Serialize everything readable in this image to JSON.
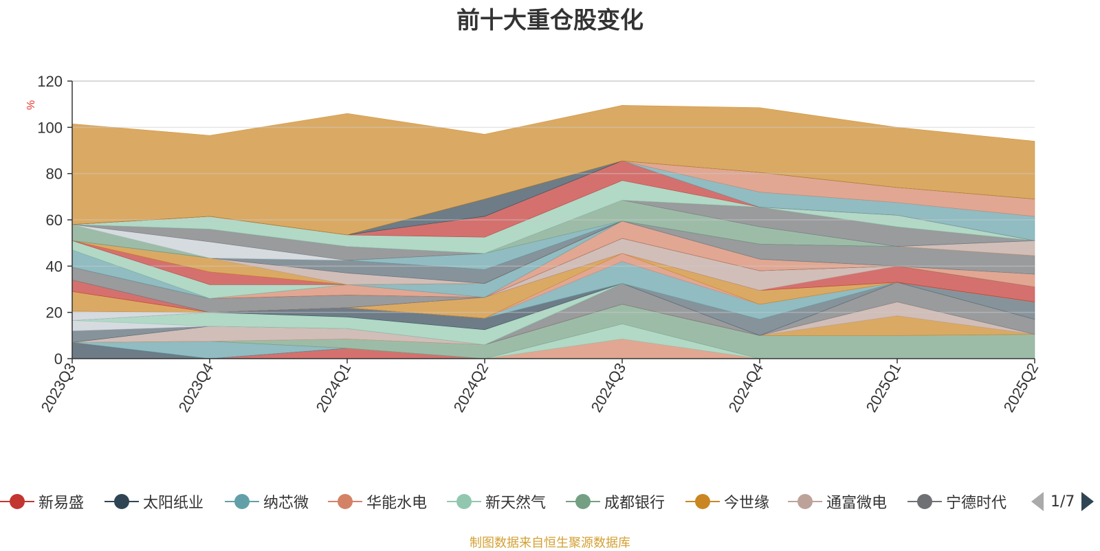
{
  "chart_data": {
    "type": "area",
    "title": "前十大重仓股变化",
    "ylabel": "%",
    "ylim": [
      0,
      120
    ],
    "yticks": [
      "0",
      "20",
      "40",
      "60",
      "80",
      "100",
      "120"
    ],
    "categories": [
      "2023Q3",
      "2023Q4",
      "2024Q1",
      "2024Q2",
      "2024Q3",
      "2024Q4",
      "2025Q1",
      "2025Q2"
    ],
    "series": [
      {
        "name": "新易盛",
        "color": "#c23531",
        "values": [
          0,
          0,
          4.5,
          0,
          0,
          0,
          0,
          0
        ]
      },
      {
        "name": "太阳纸业",
        "color": "#2f4554",
        "values": [
          7,
          0,
          0,
          0,
          0,
          0,
          0,
          0
        ]
      },
      {
        "name": "纳芯微",
        "color": "#61a0a8",
        "values": [
          0,
          7.5,
          0,
          0,
          0,
          0,
          0,
          0
        ]
      },
      {
        "name": "华能水电",
        "color": "#d48265",
        "values": [
          0,
          0,
          0,
          0,
          8.5,
          0,
          0,
          0
        ]
      },
      {
        "name": "新天然气",
        "color": "#91c7ae",
        "values": [
          0,
          0,
          0,
          0,
          6.5,
          0,
          0,
          0
        ]
      },
      {
        "name": "成都银行",
        "color": "#749f83",
        "values": [
          0,
          0,
          4,
          6,
          8.5,
          10,
          10,
          10.5
        ]
      },
      {
        "name": "今世缘",
        "color": "#ca8622",
        "values": [
          0,
          0,
          0,
          0,
          0,
          0,
          8.5,
          0
        ]
      },
      {
        "name": "通富微电",
        "color": "#bda29a",
        "values": [
          0,
          6.5,
          4.5,
          0,
          0,
          0,
          6,
          0
        ]
      },
      {
        "name": "宁德时代",
        "color": "#6e7074",
        "values": [
          0,
          0,
          0,
          0,
          9,
          0,
          8.5,
          6.5
        ]
      },
      {
        "name": "",
        "color": "#546570",
        "values": [
          5,
          0,
          0,
          0,
          0,
          7,
          0,
          7.5
        ]
      },
      {
        "name": "",
        "color": "#c4ccd3",
        "values": [
          4.5,
          0,
          0,
          0,
          0,
          0,
          0,
          0
        ]
      },
      {
        "name": "",
        "color": "#91c7ae",
        "values": [
          0,
          6,
          5,
          6.5,
          0,
          0,
          0,
          0
        ]
      },
      {
        "name": "",
        "color": "#2f4554",
        "values": [
          0,
          0,
          4,
          5,
          0,
          0,
          0,
          0
        ]
      },
      {
        "name": "",
        "color": "#bda29a",
        "values": [
          0,
          0,
          0,
          0,
          0,
          0,
          0,
          0
        ]
      },
      {
        "name": "",
        "color": "#61a0a8",
        "values": [
          0,
          0,
          0,
          0,
          9.5,
          6.5,
          0,
          0
        ]
      },
      {
        "name": "",
        "color": "#c4ccd3",
        "values": [
          4,
          0,
          0,
          0,
          0,
          0,
          0,
          0
        ]
      },
      {
        "name": "",
        "color": "#d48265",
        "values": [
          0,
          0,
          0,
          0,
          3.5,
          0,
          0,
          0
        ]
      },
      {
        "name": "",
        "color": "#ca8622",
        "values": [
          8.5,
          0,
          0,
          9,
          0,
          6,
          0,
          0
        ]
      },
      {
        "name": "",
        "color": "#c23531",
        "values": [
          5,
          0,
          0,
          0,
          0,
          0,
          7,
          6.5
        ]
      },
      {
        "name": "",
        "color": "#bda29a",
        "values": [
          0,
          0,
          0,
          0,
          6.5,
          8.5,
          0,
          0
        ]
      },
      {
        "name": "",
        "color": "#6e7074",
        "values": [
          5.5,
          6,
          5.5,
          0,
          0,
          0,
          0,
          0
        ]
      },
      {
        "name": "",
        "color": "#2f4554",
        "values": [
          0,
          0,
          0,
          0,
          0,
          0,
          0,
          0
        ]
      },
      {
        "name": "",
        "color": "#d48265",
        "values": [
          0,
          0,
          4.5,
          0,
          7.5,
          5,
          0,
          5.5
        ]
      },
      {
        "name": "",
        "color": "#61a0a8",
        "values": [
          7.5,
          0,
          0,
          6,
          0,
          0,
          0,
          0
        ]
      },
      {
        "name": "",
        "color": "#6e7074",
        "values": [
          0,
          0,
          0,
          0,
          0,
          6.5,
          8.5,
          8
        ]
      },
      {
        "name": "",
        "color": "#91c7ae",
        "values": [
          4,
          6,
          0,
          0,
          0,
          0,
          0,
          0
        ]
      },
      {
        "name": "",
        "color": "#c23531",
        "values": [
          0,
          5.5,
          0,
          0,
          0,
          0,
          0,
          0
        ]
      },
      {
        "name": "",
        "color": "#ca8622",
        "values": [
          0,
          6,
          0,
          0,
          0,
          0,
          0,
          0
        ]
      },
      {
        "name": "",
        "color": "#bda29a",
        "values": [
          0,
          0,
          5,
          0,
          0,
          0,
          0,
          6.5
        ]
      },
      {
        "name": "",
        "color": "#546570",
        "values": [
          0,
          0,
          5.5,
          6,
          0,
          0,
          0,
          0
        ]
      },
      {
        "name": "",
        "color": "#61a0a8",
        "values": [
          0,
          0,
          0,
          7,
          0,
          0,
          0,
          0
        ]
      },
      {
        "name": "",
        "color": "#749f83",
        "values": [
          7,
          0,
          0,
          0,
          9,
          7.5,
          0,
          0
        ]
      },
      {
        "name": "",
        "color": "#c4ccd3",
        "values": [
          0,
          7,
          0,
          0,
          0,
          0,
          0,
          0
        ]
      },
      {
        "name": "",
        "color": "#6e7074",
        "values": [
          0,
          5.5,
          6,
          0,
          0,
          8.5,
          8.5,
          0
        ]
      },
      {
        "name": "",
        "color": "#91c7ae",
        "values": [
          0,
          5.5,
          5,
          7,
          8.5,
          0,
          5,
          0
        ]
      },
      {
        "name": "",
        "color": "#c23531",
        "values": [
          0,
          0,
          0,
          9,
          8.5,
          0,
          0,
          0
        ]
      },
      {
        "name": "",
        "color": "#61a0a8",
        "values": [
          0,
          0,
          0,
          0,
          0,
          6.5,
          5.5,
          10.5
        ]
      },
      {
        "name": "",
        "color": "#d48265",
        "values": [
          0,
          0,
          0,
          0,
          0,
          8.5,
          6.5,
          7.5
        ]
      },
      {
        "name": "",
        "color": "#2f4554",
        "values": [
          0,
          0,
          0,
          7.5,
          0,
          0,
          0,
          0
        ]
      },
      {
        "name": "",
        "color": "#ca8622",
        "values": [
          43.5,
          35,
          52.5,
          28,
          24,
          28,
          26,
          25
        ]
      }
    ],
    "legend": {
      "position": "bottom",
      "items": [
        {
          "name": "新易盛",
          "color": "#c23531"
        },
        {
          "name": "太阳纸业",
          "color": "#2f4554"
        },
        {
          "name": "纳芯微",
          "color": "#61a0a8"
        },
        {
          "name": "华能水电",
          "color": "#d48265"
        },
        {
          "name": "新天然气",
          "color": "#91c7ae"
        },
        {
          "name": "成都银行",
          "color": "#749f83"
        },
        {
          "name": "今世缘",
          "color": "#ca8622"
        },
        {
          "name": "通富微电",
          "color": "#bda29a"
        },
        {
          "name": "宁德时代",
          "color": "#6e7074"
        }
      ],
      "page_text": "1/7"
    },
    "grid": true
  },
  "source_note": "制图数据来自恒生聚源数据库",
  "icons": {
    "prev": "triangle-left-icon",
    "next": "triangle-right-icon"
  }
}
